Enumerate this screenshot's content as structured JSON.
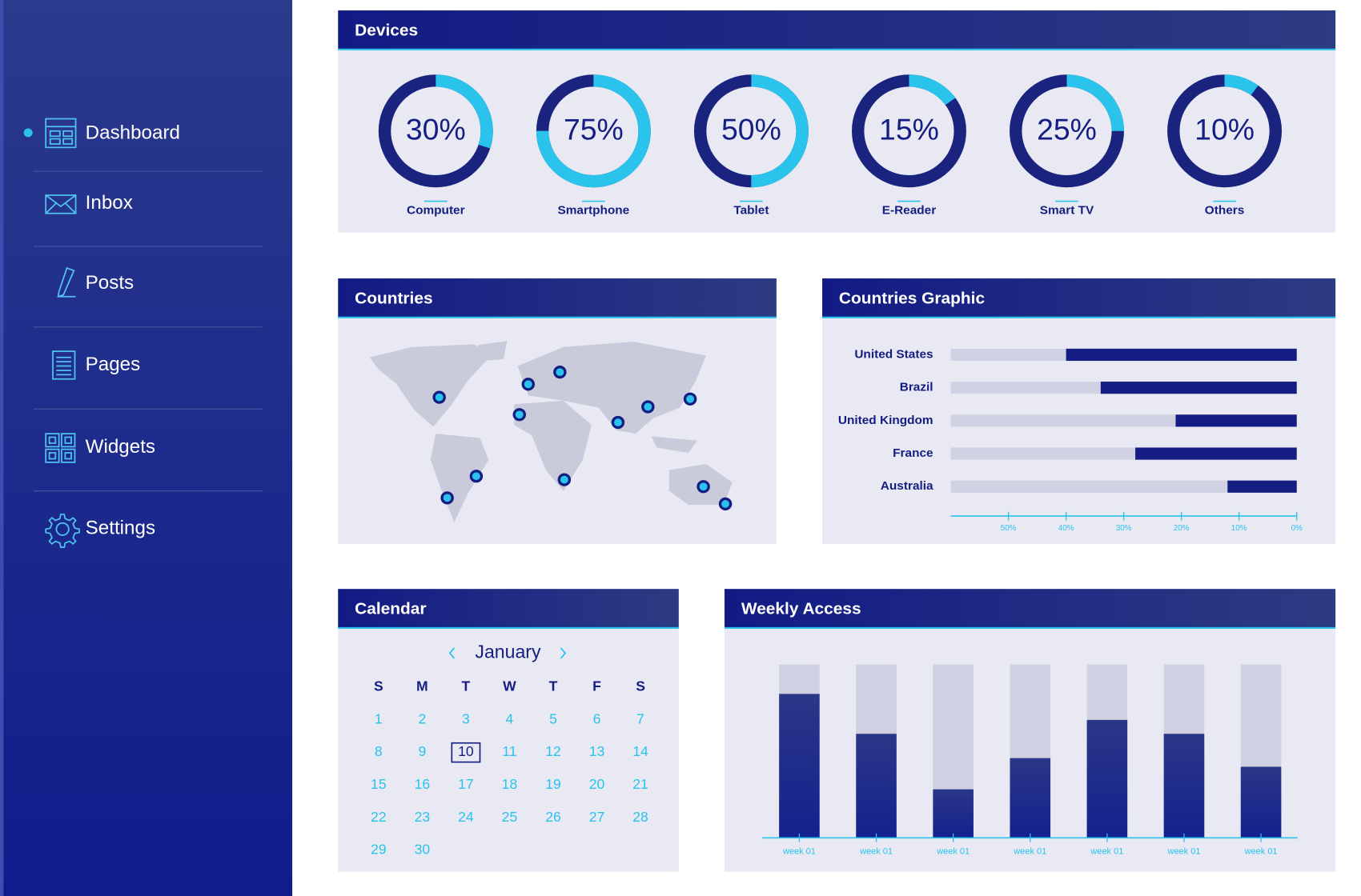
{
  "sidebar": {
    "items": [
      {
        "label": "Dashboard",
        "active": true
      },
      {
        "label": "Inbox",
        "active": false
      },
      {
        "label": "Posts",
        "active": false
      },
      {
        "label": "Pages",
        "active": false
      },
      {
        "label": "Widgets",
        "active": false
      },
      {
        "label": "Settings",
        "active": false
      }
    ]
  },
  "devices": {
    "title": "Devices",
    "categories": [
      "Computer",
      "Smartphone",
      "Tablet",
      "E-Reader",
      "Smart TV",
      "Others"
    ],
    "values": [
      30,
      75,
      50,
      15,
      25,
      10
    ],
    "value_labels": [
      "30%",
      "75%",
      "50%",
      "15%",
      "25%",
      "10%"
    ],
    "color": "#29c3ec"
  },
  "countries": {
    "title": "Countries"
  },
  "countries_graphic": {
    "title": "Countries Graphic",
    "categories": [
      "United States",
      "Brazil",
      "United Kingdom",
      "France",
      "Australia"
    ],
    "values": [
      40,
      34,
      21,
      28,
      12
    ],
    "xlim": [
      60,
      0
    ],
    "xticks": [
      {
        "value": 50,
        "label": "50%"
      },
      {
        "value": 40,
        "label": "40%"
      },
      {
        "value": 30,
        "label": "30%"
      },
      {
        "value": 20,
        "label": "20%"
      },
      {
        "value": 10,
        "label": "10%"
      },
      {
        "value": 0,
        "label": "0%"
      }
    ],
    "color": "#141e82"
  },
  "calendar": {
    "title": "Calendar",
    "month": "January",
    "weekdays": [
      "S",
      "M",
      "T",
      "W",
      "T",
      "F",
      "S"
    ],
    "days": [
      1,
      2,
      3,
      4,
      5,
      6,
      7,
      8,
      9,
      10,
      11,
      12,
      13,
      14,
      15,
      16,
      17,
      18,
      19,
      20,
      21,
      22,
      23,
      24,
      25,
      26,
      27,
      28,
      29,
      30
    ],
    "selected": 10
  },
  "weekly_access": {
    "title": "Weekly Access",
    "categories": [
      "week 01",
      "week 01",
      "week 01",
      "week 01",
      "week 01",
      "week 01",
      "week 01"
    ],
    "values": [
      83,
      60,
      28,
      46,
      68,
      60,
      41
    ],
    "ylim": [
      0,
      100
    ]
  }
}
